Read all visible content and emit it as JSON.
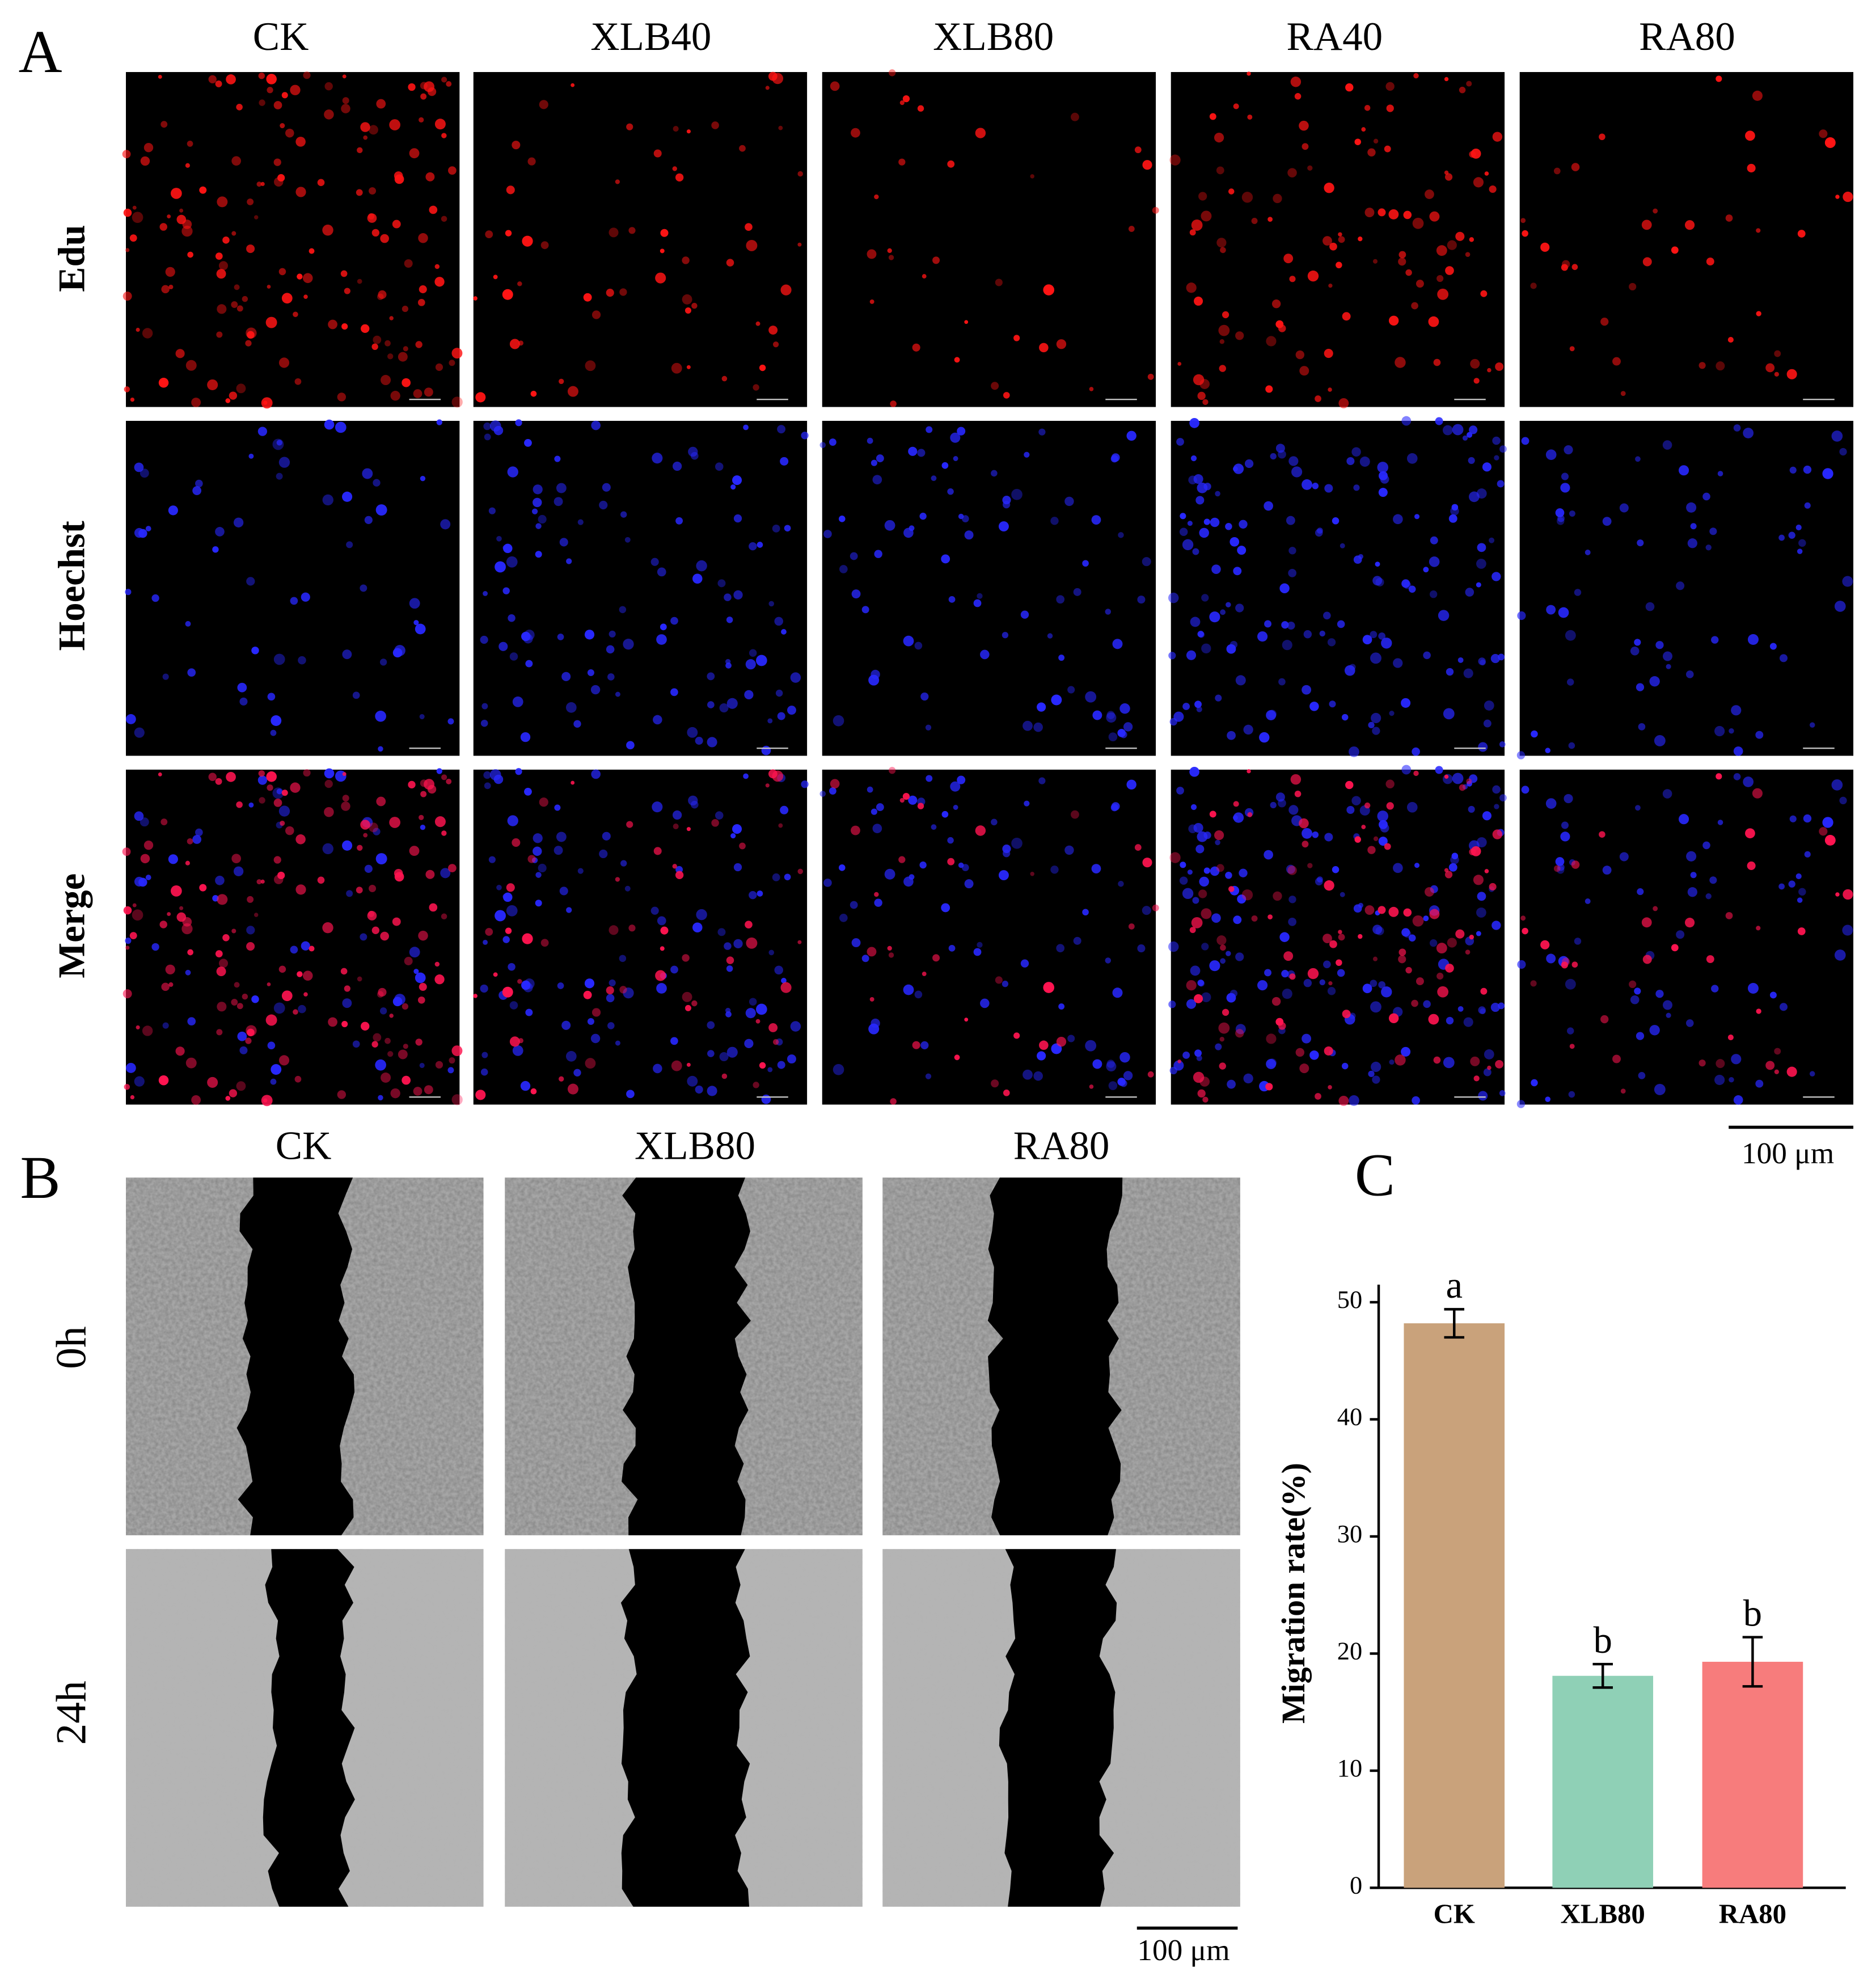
{
  "panel_a": {
    "label": "A",
    "columns": [
      "CK",
      "XLB40",
      "XLB80",
      "RA40",
      "RA80"
    ],
    "rows": [
      "Edu",
      "Hoechst",
      "Merge"
    ],
    "scale_bar": "100 μm"
  },
  "panel_b": {
    "label": "B",
    "columns": [
      "CK",
      "XLB80",
      "RA80"
    ],
    "rows": [
      "0h",
      "24h"
    ],
    "scale_bar": "100 μm"
  },
  "chart_data": {
    "type": "bar",
    "panel_label": "C",
    "ylabel": "Migration rate(%)",
    "categories": [
      "CK",
      "XLB80",
      "RA80"
    ],
    "values": [
      48.2,
      18.1,
      19.3
    ],
    "errors": [
      1.2,
      1.0,
      2.1
    ],
    "annotations": [
      "a",
      "b",
      "b"
    ],
    "colors": [
      "#c9a27b",
      "#8fd0b6",
      "#f77c7c"
    ],
    "ylim": [
      0,
      51.5
    ],
    "yticks": [
      0,
      10,
      20,
      30,
      40,
      50
    ],
    "grid": false
  }
}
